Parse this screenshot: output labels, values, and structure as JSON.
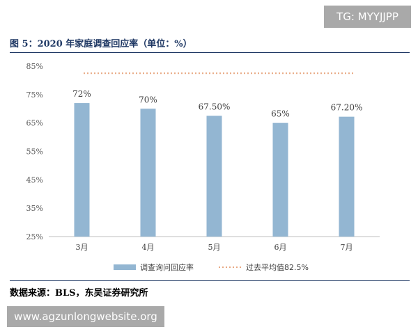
{
  "watermark_top": "TG: MYYJJPP",
  "watermark_bottom": "www.agzunlongwebsite.org",
  "figure_title": "图 5：2020 年家庭调查回应率（单位：%）",
  "source": "数据来源：BLS，东吴证券研究所",
  "chart_data": {
    "type": "bar",
    "categories": [
      "3月",
      "4月",
      "5月",
      "6月",
      "7月"
    ],
    "series": [
      {
        "name": "调查询问回应率",
        "values": [
          72,
          70,
          67.5,
          65,
          67.2
        ],
        "labels": [
          "72%",
          "70%",
          "67.50%",
          "65%",
          "67.20%"
        ],
        "color": "#93b6d2"
      }
    ],
    "reference_line": {
      "name": "过去平均值82.5%",
      "value": 82.5,
      "color": "#e8a882",
      "style": "dotted"
    },
    "ylim": [
      25,
      85
    ],
    "yticks": [
      25,
      35,
      45,
      55,
      65,
      75,
      85
    ],
    "ytick_labels": [
      "25%",
      "35%",
      "45%",
      "55%",
      "65%",
      "75%",
      "85%"
    ],
    "grid": false,
    "legend_position": "bottom"
  }
}
